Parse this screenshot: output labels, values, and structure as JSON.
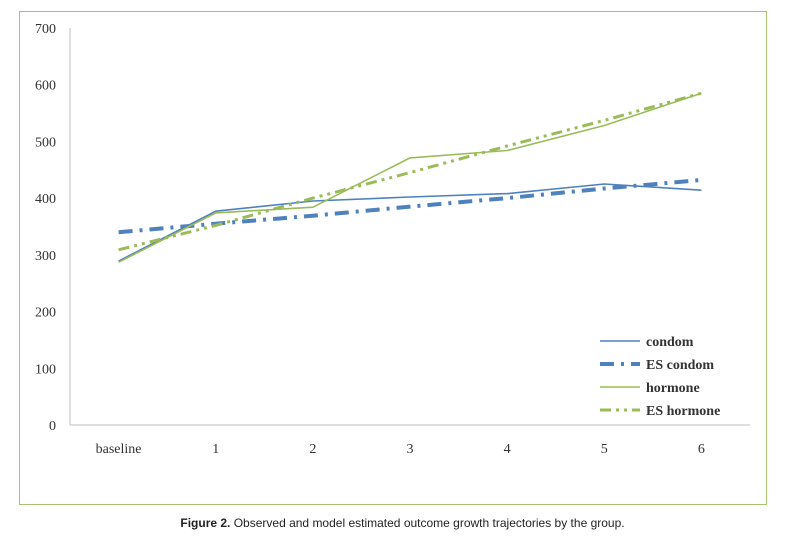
{
  "caption": {
    "label": "Figure 2.",
    "text": " Observed and model estimated outcome growth trajectories by the group."
  },
  "colors": {
    "condom": "#4f81bd",
    "hormone": "#9bbb59",
    "frame": "#a8c070",
    "axis": "#bfbfbf"
  },
  "chart_data": {
    "type": "line",
    "title": "",
    "xlabel": "",
    "ylabel": "",
    "categories": [
      "baseline",
      "1",
      "2",
      "3",
      "4",
      "5",
      "6"
    ],
    "ylim": [
      0,
      700
    ],
    "yticks": [
      0,
      100,
      200,
      300,
      400,
      500,
      600,
      700
    ],
    "grid": false,
    "legend_position": "bottom-right",
    "series": [
      {
        "name": "condom",
        "style": "solid",
        "color": "#4f81bd",
        "values": [
          289,
          377,
          395,
          402,
          408,
          425,
          414
        ]
      },
      {
        "name": "ES condom",
        "style": "dash-dot-thick",
        "color": "#4f81bd",
        "values": [
          340,
          355,
          369,
          385,
          400,
          417,
          432
        ]
      },
      {
        "name": "hormone",
        "style": "solid",
        "color": "#9bbb59",
        "values": [
          287,
          374,
          384,
          471,
          484,
          528,
          585
        ]
      },
      {
        "name": "ES hormone",
        "style": "dash-dot-dot",
        "color": "#9bbb59",
        "values": [
          309,
          352,
          400,
          445,
          492,
          537,
          585
        ]
      }
    ]
  }
}
